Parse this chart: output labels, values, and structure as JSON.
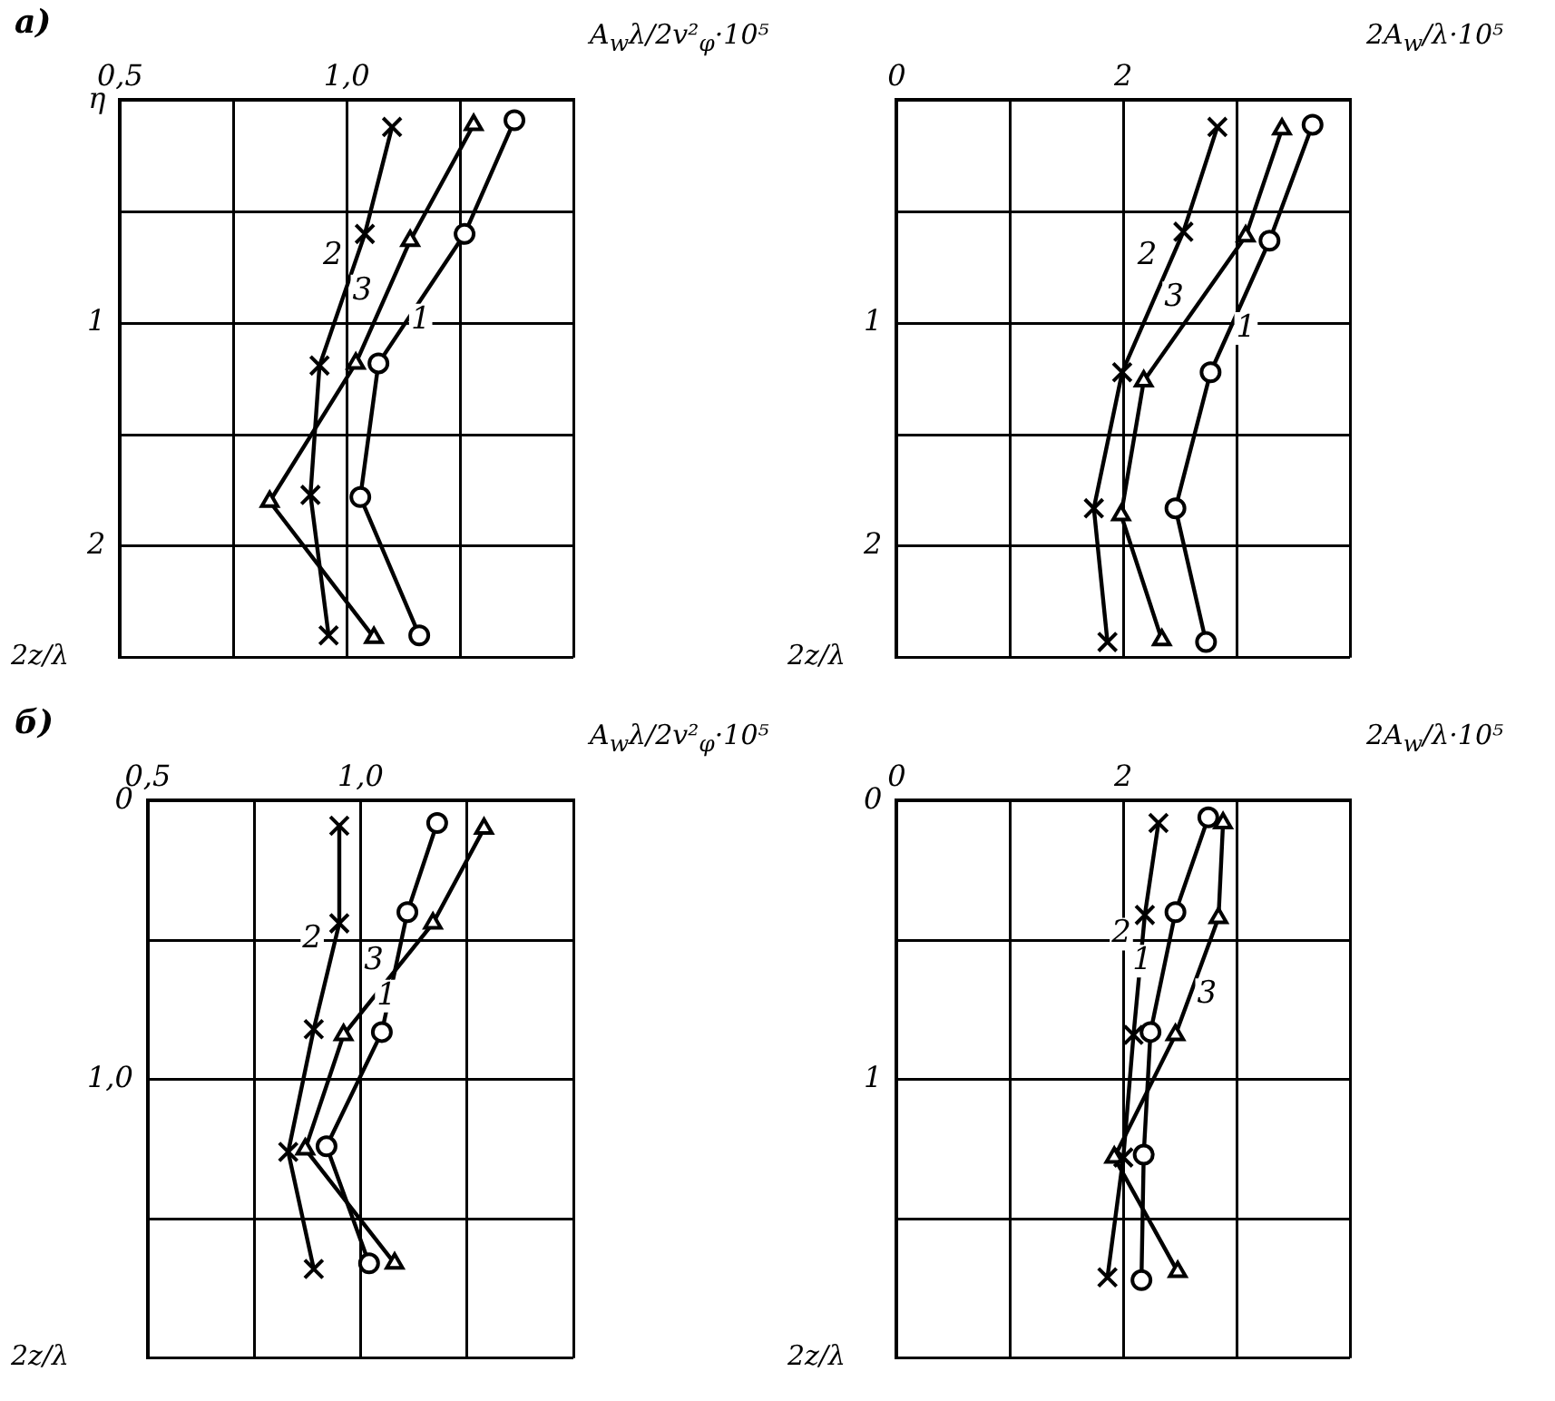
{
  "chart_data": [
    {
      "type": "line",
      "title": "а)",
      "xlabel": "A$_{w}$λ/2v²$_{φ}$·10⁵",
      "ylabel": "2z/λ",
      "grid": true,
      "xlim": [
        0.5,
        1.5
      ],
      "xticks": [
        {
          "value": 0.5,
          "label": "0,5"
        },
        {
          "value": 0.75,
          "label": null
        },
        {
          "value": 1.0,
          "label": "1,0"
        },
        {
          "value": 1.25,
          "label": null
        },
        {
          "value": 1.5,
          "label": null
        }
      ],
      "ylim": [
        2.5,
        0
      ],
      "yticks": [
        {
          "value": 0,
          "label": "η"
        },
        {
          "value": 0.5,
          "label": null
        },
        {
          "value": 1,
          "label": "1"
        },
        {
          "value": 1.5,
          "label": null
        },
        {
          "value": 2,
          "label": "2"
        },
        {
          "value": 2.5,
          "label": null
        }
      ],
      "series": [
        {
          "name": "2",
          "color": "#000000",
          "marker": "cross",
          "x": [
            1.1,
            1.04,
            0.94,
            0.92,
            0.96
          ],
          "values": [
            0.12,
            0.6,
            1.19,
            1.77,
            2.4
          ]
        },
        {
          "name": "3",
          "color": "#000000",
          "marker": "triangle",
          "x": [
            1.28,
            1.14,
            1.02,
            0.83,
            1.06
          ],
          "values": [
            0.11,
            0.63,
            1.18,
            1.8,
            2.41
          ]
        },
        {
          "name": "1",
          "color": "#000000",
          "marker": "circle",
          "x": [
            1.37,
            1.26,
            1.07,
            1.03,
            1.16
          ],
          "values": [
            0.09,
            0.6,
            1.18,
            1.78,
            2.4
          ]
        }
      ]
    },
    {
      "type": "line",
      "xlabel": "2A$_{w}$/λ·10⁵",
      "ylabel": "2z/λ",
      "grid": true,
      "xlim": [
        0,
        4
      ],
      "xticks": [
        {
          "value": 0,
          "label": "0"
        },
        {
          "value": 1,
          "label": null
        },
        {
          "value": 2,
          "label": "2"
        },
        {
          "value": 3,
          "label": null
        },
        {
          "value": 4,
          "label": null
        }
      ],
      "ylim": [
        2.5,
        0
      ],
      "yticks": [
        {
          "value": 0,
          "label": null
        },
        {
          "value": 0.5,
          "label": null
        },
        {
          "value": 1,
          "label": "1"
        },
        {
          "value": 1.5,
          "label": null
        },
        {
          "value": 2,
          "label": "2"
        },
        {
          "value": 2.5,
          "label": null
        }
      ],
      "series": [
        {
          "name": "2",
          "color": "#000000",
          "marker": "cross",
          "x": [
            2.83,
            2.53,
            1.99,
            1.74,
            1.86
          ],
          "values": [
            0.12,
            0.59,
            1.22,
            1.83,
            2.43
          ]
        },
        {
          "name": "3",
          "color": "#000000",
          "marker": "triangle",
          "x": [
            3.4,
            3.08,
            2.18,
            1.98,
            2.34
          ],
          "values": [
            0.13,
            0.61,
            1.26,
            1.86,
            2.42
          ]
        },
        {
          "name": "1",
          "color": "#000000",
          "marker": "circle",
          "x": [
            3.67,
            3.29,
            2.77,
            2.46,
            2.73
          ],
          "values": [
            0.11,
            0.63,
            1.22,
            1.83,
            2.43
          ]
        }
      ]
    },
    {
      "type": "line",
      "title": "б)",
      "xlabel": "A$_{w}$λ/2v²$_{φ}$·10⁵",
      "ylabel": "2z/λ",
      "grid": true,
      "xlim": [
        0.5,
        1.5
      ],
      "xticks": [
        {
          "value": 0.5,
          "label": "0,5"
        },
        {
          "value": 0.75,
          "label": null
        },
        {
          "value": 1.0,
          "label": "1,0"
        },
        {
          "value": 1.25,
          "label": null
        },
        {
          "value": 1.5,
          "label": null
        }
      ],
      "ylim": [
        2,
        0
      ],
      "yticks": [
        {
          "value": 0,
          "label": "0"
        },
        {
          "value": 0.5,
          "label": null
        },
        {
          "value": 1,
          "label": "1,0"
        },
        {
          "value": 1.5,
          "label": null
        },
        {
          "value": 2,
          "label": null
        }
      ],
      "series": [
        {
          "name": "2",
          "color": "#000000",
          "marker": "cross",
          "x": [
            0.95,
            0.95,
            0.89,
            0.83,
            0.89
          ],
          "values": [
            0.09,
            0.44,
            0.82,
            1.26,
            1.68
          ]
        },
        {
          "name": "3",
          "color": "#000000",
          "marker": "circle",
          "x": [
            1.18,
            1.11,
            1.05,
            0.92,
            1.02
          ],
          "values": [
            0.08,
            0.4,
            0.83,
            1.24,
            1.66
          ]
        },
        {
          "name": "1",
          "color": "#000000",
          "marker": "triangle",
          "x": [
            1.29,
            1.17,
            0.96,
            0.87,
            1.08
          ],
          "values": [
            0.1,
            0.44,
            0.84,
            1.25,
            1.66
          ]
        }
      ]
    },
    {
      "type": "line",
      "xlabel": "2A$_{w}$/λ·10⁵",
      "ylabel": "2z/λ",
      "grid": true,
      "xlim": [
        0,
        4
      ],
      "xticks": [
        {
          "value": 0,
          "label": "0"
        },
        {
          "value": 1,
          "label": null
        },
        {
          "value": 2,
          "label": "2"
        },
        {
          "value": 3,
          "label": null
        },
        {
          "value": 4,
          "label": null
        }
      ],
      "ylim": [
        2,
        0
      ],
      "yticks": [
        {
          "value": 0,
          "label": "0"
        },
        {
          "value": 0.5,
          "label": null
        },
        {
          "value": 1,
          "label": "1"
        },
        {
          "value": 1.5,
          "label": null
        },
        {
          "value": 2,
          "label": null
        }
      ],
      "series": [
        {
          "name": "2",
          "color": "#000000",
          "marker": "cross",
          "x": [
            2.31,
            2.19,
            2.09,
            2.0,
            1.86
          ],
          "values": [
            0.08,
            0.41,
            0.84,
            1.28,
            1.71
          ]
        },
        {
          "name": "1",
          "color": "#000000",
          "marker": "circle",
          "x": [
            2.75,
            2.46,
            2.24,
            2.18,
            2.16
          ],
          "values": [
            0.06,
            0.4,
            0.83,
            1.27,
            1.72
          ]
        },
        {
          "name": "3",
          "color": "#000000",
          "marker": "triangle",
          "x": [
            2.88,
            2.84,
            2.46,
            1.92,
            2.48
          ],
          "values": [
            0.08,
            0.42,
            0.84,
            1.28,
            1.69
          ]
        }
      ]
    }
  ]
}
